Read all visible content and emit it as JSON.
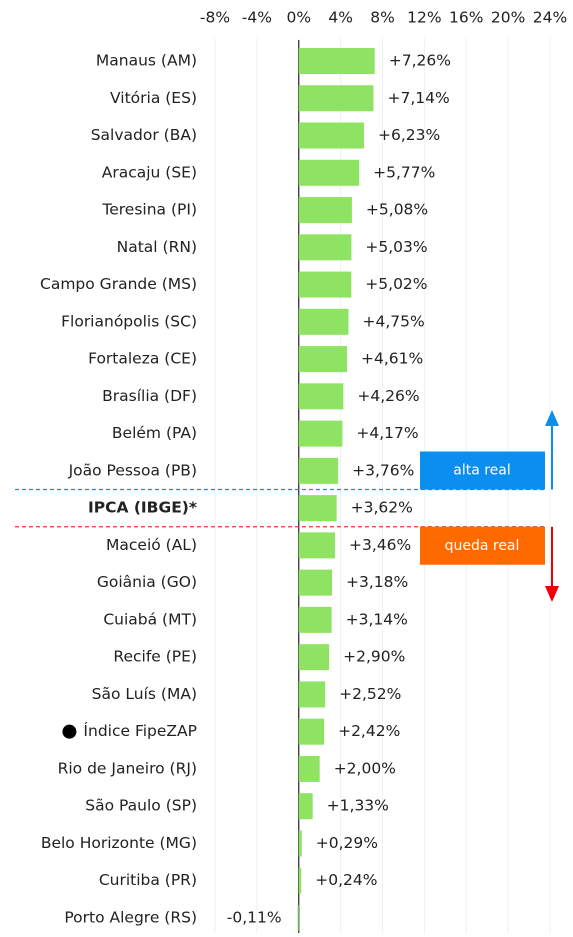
{
  "chart_data": {
    "type": "barh",
    "categories": [
      "Manaus (AM)",
      "Vitória (ES)",
      "Salvador (BA)",
      "Aracaju (SE)",
      "Teresina (PI)",
      "Natal (RN)",
      "Campo Grande (MS)",
      "Florianópolis (SC)",
      "Fortaleza (CE)",
      "Brasília (DF)",
      "Belém (PA)",
      "João Pessoa (PB)",
      "IPCA (IBGE)*",
      "Maceió (AL)",
      "Goiânia (GO)",
      "Cuiabá (MT)",
      "Recife (PE)",
      "São Luís (MA)",
      "Índice FipeZAP",
      "Rio de Janeiro (RJ)",
      "São Paulo (SP)",
      "Belo Horizonte (MG)",
      "Curitiba (PR)",
      "Porto Alegre (RS)"
    ],
    "values": [
      7.26,
      7.14,
      6.23,
      5.77,
      5.08,
      5.03,
      5.02,
      4.75,
      4.61,
      4.26,
      4.17,
      3.76,
      3.62,
      3.46,
      3.18,
      3.14,
      2.9,
      2.52,
      2.42,
      2.0,
      1.33,
      0.29,
      0.24,
      -0.11
    ],
    "value_labels": [
      "+7,26%",
      "+7,14%",
      "+6,23%",
      "+5,77%",
      "+5,08%",
      "+5,03%",
      "+5,02%",
      "+4,75%",
      "+4,61%",
      "+4,26%",
      "+4,17%",
      "+3,76%",
      "+3,62%",
      "+3,46%",
      "+3,18%",
      "+3,14%",
      "+2,90%",
      "+2,52%",
      "+2,42%",
      "+2,00%",
      "+1,33%",
      "+0,29%",
      "+0,24%",
      "-0,11%"
    ],
    "color": "#8ee462",
    "xlim": [
      -8,
      24
    ],
    "xticks": [
      {
        "value": -8,
        "label": "-8%"
      },
      {
        "value": -4,
        "label": "-4%"
      },
      {
        "value": 0,
        "label": "0%"
      },
      {
        "value": 4,
        "label": "4%"
      },
      {
        "value": 8,
        "label": "8%"
      },
      {
        "value": 12,
        "label": "12%"
      },
      {
        "value": 16,
        "label": "16%"
      },
      {
        "value": 20,
        "label": "20%"
      },
      {
        "value": 24,
        "label": "24%"
      }
    ],
    "grid": true,
    "bold_category": "IPCA (IBGE)*",
    "marker_category": "Índice FipeZAP",
    "annotations": [
      {
        "text": "alta real",
        "color": "#0a8ef0"
      },
      {
        "text": "queda real",
        "color": "#ff6a00"
      }
    ]
  }
}
